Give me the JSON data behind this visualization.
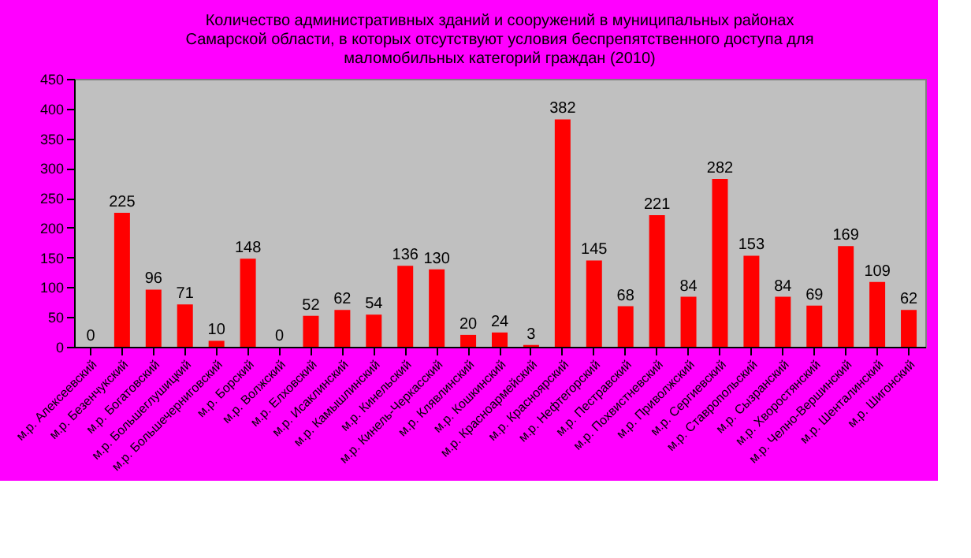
{
  "chart_data": {
    "type": "bar",
    "title": [
      "Количество административных зданий и сооружений в муниципальных районах",
      "Самарской области, в которых отсутствуют условия беспрепятственного доступа для",
      "маломобильных категорий граждан (2010)"
    ],
    "categories": [
      "м.р. Алексеевский",
      "м.р. Безенчукский",
      "м.р. Богатовский",
      "м.р. Большеглушицкий",
      "м.р. Большечерниговский",
      "м.р. Борский",
      "м.р. Волжский",
      "м.р. Елховский",
      "м.р. Исаклинский",
      "м.р. Камышлинский",
      "м.р. Кинельский",
      "м.р. Кинель-Черкасский",
      "м.р. Клявлинский",
      "м.р. Кошкинский",
      "м.р. Красноармейский",
      "м.р. Красноярский",
      "м.р. Нефтегорский",
      "м.р. Пестравский",
      "м.р. Похвистневский",
      "м.р. Приволжский",
      "м.р. Сергиевский",
      "м.р. Ставропольский",
      "м.р. Сызранский",
      "м.р. Хворостянский",
      "м.р. Челно-Вершинский",
      "м.р. Шенталинский",
      "м.р. Шигонский"
    ],
    "values": [
      0,
      225,
      96,
      71,
      10,
      148,
      0,
      52,
      62,
      54,
      136,
      130,
      20,
      24,
      3,
      382,
      145,
      68,
      221,
      84,
      282,
      153,
      84,
      69,
      169,
      109,
      62
    ],
    "color": "#ff0000",
    "ylim": [
      0,
      450
    ],
    "yticks": [
      0,
      50,
      100,
      150,
      200,
      250,
      300,
      350,
      400,
      450
    ],
    "data_labels": true,
    "grid": false
  }
}
